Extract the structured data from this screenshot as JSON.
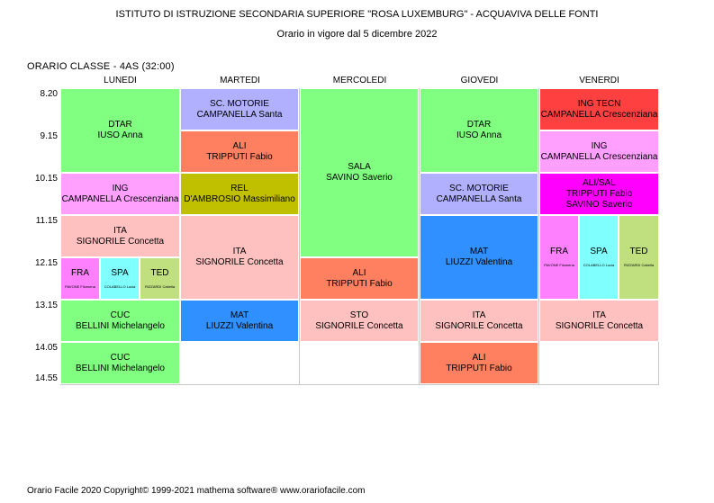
{
  "header": {
    "title": "ISTITUTO DI ISTRUZIONE SECONDARIA SUPERIORE \"ROSA LUXEMBURG\" - ACQUAVIVA DELLE FONTI",
    "subtitle": "Orario in vigore dal 5 dicembre 2022",
    "class_label": "ORARIO CLASSE   -   4AS  (32:00)"
  },
  "days": [
    "LUNEDI",
    "MARTEDI",
    "MERCOLEDI",
    "GIOVEDI",
    "VENERDI"
  ],
  "times": [
    "8.20",
    "9.15",
    "10.15",
    "11.15",
    "12.15",
    "13.15",
    "14.05",
    "14.55"
  ],
  "colors": {
    "dtar": "#80ff80",
    "ing": "#ffa0ff",
    "ita": "#ffc0c0",
    "fra": "#ff80ff",
    "spa": "#80ffff",
    "ted": "#c0e080",
    "cuc": "#80ff80",
    "motorie": "#b0b0ff",
    "ali": "#ff8060",
    "rel": "#c0c000",
    "mat": "#3090ff",
    "sala": "#80ff80",
    "sto": "#ffc0c0",
    "ingtecn": "#ff4040",
    "alisal": "#ff00ff"
  },
  "lessons": {
    "mon_dtar": {
      "subject": "DTAR",
      "teacher": "IUSO Anna"
    },
    "mon_ing": {
      "subject": "ING",
      "teacher": "CAMPANELLA Crescenziana"
    },
    "mon_ita": {
      "subject": "ITA",
      "teacher": "SIGNORILE Concetta"
    },
    "mon_fra": {
      "subject": "FRA",
      "teacher": "PAVONE Filomena"
    },
    "mon_spa": {
      "subject": "SPA",
      "teacher": "COLABELLO Lucia"
    },
    "mon_ted": {
      "subject": "TED",
      "teacher": "RIZZARDI Cabella"
    },
    "mon_cuc1": {
      "subject": "CUC",
      "teacher": "BELLINI Michelangelo"
    },
    "mon_cuc2": {
      "subject": "CUC",
      "teacher": "BELLINI Michelangelo"
    },
    "tue_mot": {
      "subject": "SC. MOTORIE",
      "teacher": "CAMPANELLA Santa"
    },
    "tue_ali": {
      "subject": "ALI",
      "teacher": "TRIPPUTI Fabio"
    },
    "tue_rel": {
      "subject": "REL",
      "teacher": "D'AMBROSIO Massimiliano"
    },
    "tue_ita": {
      "subject": "ITA",
      "teacher": "SIGNORILE Concetta"
    },
    "tue_mat": {
      "subject": "MAT",
      "teacher": "LIUZZI Valentina"
    },
    "wed_sala": {
      "subject": "SALA",
      "teacher": "SAVINO Saverio"
    },
    "wed_ali": {
      "subject": "ALI",
      "teacher": "TRIPPUTI Fabio"
    },
    "wed_sto": {
      "subject": "STO",
      "teacher": "SIGNORILE Concetta"
    },
    "thu_dtar": {
      "subject": "DTAR",
      "teacher": "IUSO Anna"
    },
    "thu_mot": {
      "subject": "SC. MOTORIE",
      "teacher": "CAMPANELLA Santa"
    },
    "thu_mat": {
      "subject": "MAT",
      "teacher": "LIUZZI Valentina"
    },
    "thu_ita": {
      "subject": "ITA",
      "teacher": "SIGNORILE Concetta"
    },
    "thu_ali": {
      "subject": "ALI",
      "teacher": "TRIPPUTI Fabio"
    },
    "fri_ingtecn": {
      "subject": "ING TECN",
      "teacher": "CAMPANELLA Crescenziana"
    },
    "fri_ing": {
      "subject": "ING",
      "teacher": "CAMPANELLA Crescenziana"
    },
    "fri_alisal": {
      "subject": "ALI/SAL",
      "teacher": "TRIPPUTI Fabio",
      "teacher2": "SAVINO Saverio"
    },
    "fri_fra": {
      "subject": "FRA",
      "teacher": "PAVONE Filomena"
    },
    "fri_spa": {
      "subject": "SPA",
      "teacher": "COLABELLO Lucia"
    },
    "fri_ted": {
      "subject": "TED",
      "teacher": "RIZZARDI Cabella"
    },
    "fri_ita": {
      "subject": "ITA",
      "teacher": "SIGNORILE Concetta"
    }
  },
  "footer": "Orario Facile 2020  Copyright© 1999-2021 mathema software®     www.orariofacile.com"
}
